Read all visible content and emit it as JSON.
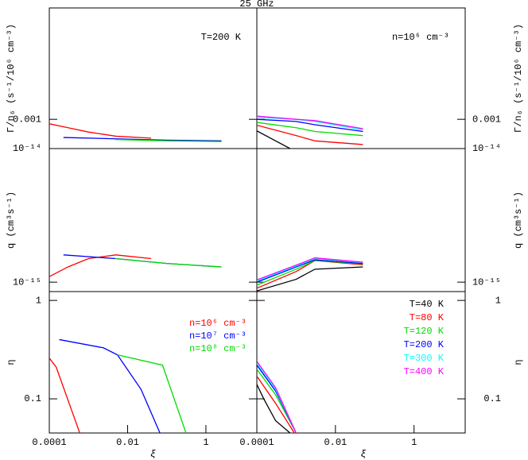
{
  "title": "25 GHz",
  "chart_data": [
    {
      "type": "line",
      "xlog": true,
      "ylog": true,
      "xlim": [
        0.0001,
        20
      ],
      "ylim": [
        0.0005,
        0.014
      ],
      "yticks": [
        0.001
      ],
      "ylabel": "Γ/n₆ (s⁻¹/10⁶ cm⁻³)",
      "annotation": "T=200 K",
      "series": [
        {
          "color": "#ff0000",
          "x": [
            0.0001,
            0.0003,
            0.001,
            0.005,
            0.04
          ],
          "values": [
            0.0009,
            0.00082,
            0.00074,
            0.00067,
            0.00064
          ]
        },
        {
          "color": "#0000ff",
          "x": [
            0.00023,
            0.005,
            0.1,
            2.5
          ],
          "values": [
            0.00065,
            0.00063,
            0.00061,
            0.0006
          ]
        },
        {
          "color": "#00dd00",
          "x": [
            0.0048,
            0.1,
            2.5
          ],
          "values": [
            0.00062,
            0.0006,
            0.00059
          ]
        }
      ]
    },
    {
      "type": "line",
      "xlog": true,
      "ylog": true,
      "xlim": [
        0.0001,
        20
      ],
      "ylim": [
        0.0005,
        0.014
      ],
      "yticks": [
        0.001
      ],
      "ylabel": "Γ/n₆ (s⁻¹/10⁶ cm⁻³)",
      "annotation": "n=10⁶ cm⁻³",
      "series": [
        {
          "color": "#000000",
          "x": [
            0.0001,
            0.0003,
            0.0007
          ],
          "values": [
            0.00076,
            0.0006,
            0.0005
          ]
        },
        {
          "color": "#ff0000",
          "x": [
            0.0001,
            0.001,
            0.003,
            0.05
          ],
          "values": [
            0.00087,
            0.00068,
            0.0006,
            0.00055
          ]
        },
        {
          "color": "#00dd00",
          "x": [
            0.0001,
            0.001,
            0.003,
            0.05
          ],
          "values": [
            0.00093,
            0.00082,
            0.00075,
            0.00068
          ]
        },
        {
          "color": "#0000ff",
          "x": [
            0.0001,
            0.001,
            0.003,
            0.05
          ],
          "values": [
            0.001,
            0.00095,
            0.00088,
            0.00075
          ]
        },
        {
          "color": "#00ffff",
          "x": [
            0.0001,
            0.001,
            0.003,
            0.05
          ],
          "values": [
            0.00105,
            0.001,
            0.00095,
            0.00078
          ]
        },
        {
          "color": "#ff00ff",
          "x": [
            0.0001,
            0.001,
            0.003,
            0.05
          ],
          "values": [
            0.00108,
            0.001,
            0.00097,
            0.0008
          ]
        }
      ]
    },
    {
      "type": "line",
      "xlog": true,
      "ylog": true,
      "xlim": [
        0.0001,
        20
      ],
      "ylim": [
        8.5e-16,
        1e-14
      ],
      "yticks": [
        {
          "value": 1e-14,
          "label": "10⁻¹⁴"
        },
        {
          "value": 1e-15,
          "label": "10⁻¹⁵"
        }
      ],
      "ylabel": "q (cm³s⁻¹)",
      "series": [
        {
          "color": "#ff0000",
          "x": [
            0.0001,
            0.0003,
            0.001,
            0.005,
            0.04
          ],
          "values": [
            1.1e-15,
            1.3e-15,
            1.5e-15,
            1.6e-15,
            1.5e-15
          ]
        },
        {
          "color": "#0000ff",
          "x": [
            0.00023,
            0.005,
            0.1,
            2.5
          ],
          "values": [
            1.6e-15,
            1.5e-15,
            1.38e-15,
            1.3e-15
          ]
        },
        {
          "color": "#00dd00",
          "x": [
            0.0048,
            0.1,
            2.5
          ],
          "values": [
            1.5e-15,
            1.38e-15,
            1.3e-15
          ]
        }
      ]
    },
    {
      "type": "line",
      "xlog": true,
      "ylog": true,
      "xlim": [
        0.0001,
        20
      ],
      "ylim": [
        8.5e-16,
        1e-14
      ],
      "yticks": [
        {
          "value": 1e-14,
          "label": "10⁻¹⁴"
        },
        {
          "value": 1e-15,
          "label": "10⁻¹⁵"
        }
      ],
      "ylabel": "q (cm³s⁻¹)",
      "series": [
        {
          "color": "#000000",
          "x": [
            0.0001,
            0.001,
            0.003,
            0.05
          ],
          "values": [
            8.6e-16,
            1.05e-15,
            1.25e-15,
            1.3e-15
          ]
        },
        {
          "color": "#ff0000",
          "x": [
            0.0001,
            0.001,
            0.003,
            0.05
          ],
          "values": [
            9e-16,
            1.2e-15,
            1.45e-15,
            1.35e-15
          ]
        },
        {
          "color": "#00dd00",
          "x": [
            0.0001,
            0.001,
            0.003,
            0.05
          ],
          "values": [
            9.5e-16,
            1.25e-15,
            1.45e-15,
            1.37e-15
          ]
        },
        {
          "color": "#0000ff",
          "x": [
            0.0001,
            0.001,
            0.003,
            0.05
          ],
          "values": [
            1e-15,
            1.3e-15,
            1.47e-15,
            1.38e-15
          ]
        },
        {
          "color": "#00ffff",
          "x": [
            0.0001,
            0.001,
            0.003,
            0.05
          ],
          "values": [
            1.02e-15,
            1.32e-15,
            1.5e-15,
            1.4e-15
          ]
        },
        {
          "color": "#ff00ff",
          "x": [
            0.0001,
            0.001,
            0.003,
            0.05
          ],
          "values": [
            1.04e-15,
            1.34e-15,
            1.52e-15,
            1.41e-15
          ]
        }
      ]
    },
    {
      "type": "line",
      "xlog": true,
      "ylog": true,
      "xlim": [
        0.0001,
        20
      ],
      "ylim": [
        0.045,
        1.23
      ],
      "xticks": [
        0.0001,
        0.01,
        1
      ],
      "yticks": [
        0.1,
        1
      ],
      "xlabel": "ξ",
      "ylabel": "η",
      "series": [
        {
          "name": "n=10⁶ cm⁻³",
          "color": "#ff0000",
          "x": [
            0.0001,
            0.00015,
            0.0006
          ],
          "values": [
            0.26,
            0.21,
            0.045
          ]
        },
        {
          "name": "n=10⁷ cm⁻³",
          "color": "#0000ff",
          "x": [
            0.00018,
            0.0024,
            0.0055,
            0.022,
            0.067
          ],
          "values": [
            0.4,
            0.33,
            0.28,
            0.125,
            0.045
          ]
        },
        {
          "name": "n=10⁸ cm⁻³",
          "color": "#00dd00",
          "x": [
            0.0055,
            0.078,
            0.31
          ],
          "values": [
            0.28,
            0.22,
            0.045
          ]
        }
      ]
    },
    {
      "type": "line",
      "xlog": true,
      "ylog": true,
      "xlim": [
        0.0001,
        20
      ],
      "ylim": [
        0.045,
        1.23
      ],
      "xticks": [
        0.0001,
        0.01,
        1
      ],
      "yticks": [
        0.1,
        1
      ],
      "xlabel": "ξ",
      "ylabel": "η",
      "series": [
        {
          "name": "T=40 K",
          "color": "#000000",
          "x": [
            0.0001,
            0.00015,
            0.0003,
            0.0007
          ],
          "values": [
            0.14,
            0.1,
            0.06,
            0.045
          ]
        },
        {
          "name": "T=80 K",
          "color": "#ff0000",
          "x": [
            0.0001,
            0.0003,
            0.0009
          ],
          "values": [
            0.17,
            0.09,
            0.045
          ]
        },
        {
          "name": "T=120 K",
          "color": "#00dd00",
          "x": [
            0.0001,
            0.0003,
            0.001
          ],
          "values": [
            0.2,
            0.11,
            0.045
          ]
        },
        {
          "name": "T=200 K",
          "color": "#0000ff",
          "x": [
            0.0001,
            0.0003,
            0.001
          ],
          "values": [
            0.22,
            0.12,
            0.045
          ]
        },
        {
          "name": "T=300 K",
          "color": "#00ffff",
          "x": [
            0.0001,
            0.0003,
            0.001
          ],
          "values": [
            0.23,
            0.125,
            0.045
          ]
        },
        {
          "name": "T=400 K",
          "color": "#ff00ff",
          "x": [
            0.0001,
            0.0003,
            0.001
          ],
          "values": [
            0.24,
            0.13,
            0.045
          ]
        }
      ]
    }
  ]
}
